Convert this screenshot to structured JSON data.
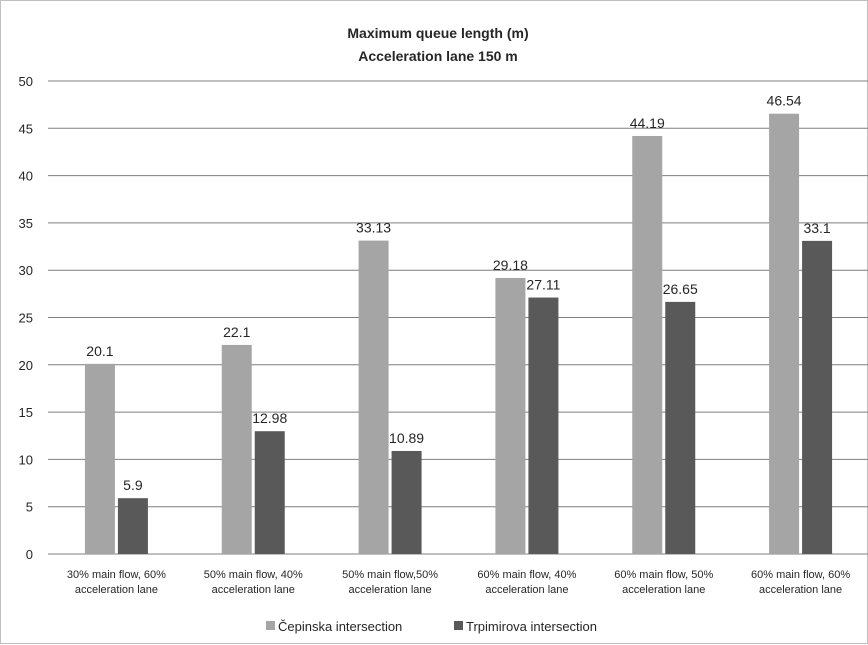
{
  "chart_data": {
    "type": "bar",
    "title": "Maximum queue length (m)",
    "subtitle": "Acceleration lane 150  m",
    "xlabel": "",
    "ylabel": "",
    "ylim": [
      0,
      50
    ],
    "yticks": [
      0,
      5,
      10,
      15,
      20,
      25,
      30,
      35,
      40,
      45,
      50
    ],
    "grid": true,
    "legend_position": "bottom",
    "categories": [
      [
        "30% main flow, 60%",
        "acceleration lane"
      ],
      [
        "50% main flow, 40%",
        "acceleration lane"
      ],
      [
        "50% main flow,50%",
        "acceleration lane"
      ],
      [
        "60% main flow, 40%",
        "acceleration lane"
      ],
      [
        "60% main flow, 50%",
        "acceleration lane"
      ],
      [
        "60% main flow, 60%",
        "acceleration lane"
      ]
    ],
    "series": [
      {
        "name": "Čepinska intersection",
        "color": "#a5a5a5",
        "values": [
          20.1,
          22.1,
          33.13,
          29.18,
          44.19,
          46.54
        ],
        "labels": [
          "20.1",
          "22.1",
          "33.13",
          "29.18",
          "44.19",
          "46.54"
        ]
      },
      {
        "name": "Trpimirova intersection",
        "color": "#595959",
        "values": [
          5.9,
          12.98,
          10.89,
          27.11,
          26.65,
          33.1
        ],
        "labels": [
          "5.9",
          "12.98",
          "10.89",
          "27.11",
          "26.65",
          "33.1"
        ]
      }
    ]
  }
}
